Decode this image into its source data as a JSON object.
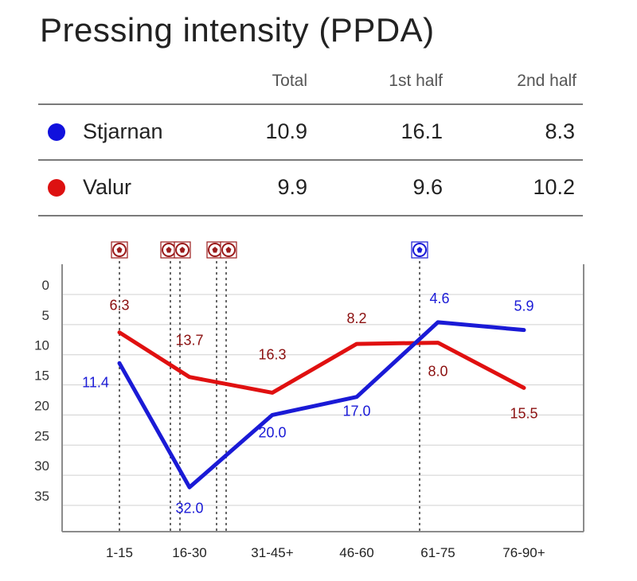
{
  "title": "Pressing intensity (PPDA)",
  "summary": {
    "columns": [
      "Total",
      "1st half",
      "2nd half"
    ],
    "rows": [
      {
        "team": "Stjarnan",
        "color": "#1111dd",
        "values": [
          "10.9",
          "16.1",
          "8.3"
        ]
      },
      {
        "team": "Valur",
        "color": "#dd1111",
        "values": [
          "9.9",
          "9.6",
          "10.2"
        ]
      }
    ]
  },
  "chart_data": {
    "type": "line",
    "categories": [
      "1-15",
      "16-30",
      "31-45+",
      "46-60",
      "61-75",
      "76-90+"
    ],
    "ylim": [
      0,
      35
    ],
    "y_inverted": true,
    "yticks": [
      0,
      5,
      10,
      15,
      20,
      25,
      30,
      35
    ],
    "grid": true,
    "series": [
      {
        "name": "Stjarnan",
        "color": "#1a1ad6",
        "label_color": "#1a1ad6",
        "values": [
          11.4,
          32.0,
          20.0,
          17.0,
          4.6,
          5.9
        ],
        "labels": [
          "11.4",
          "32.0",
          "20.0",
          "17.0",
          "4.6",
          "5.9"
        ]
      },
      {
        "name": "Valur",
        "color": "#e01010",
        "label_color": "#8b1010",
        "values": [
          6.3,
          13.7,
          16.3,
          8.2,
          8.0,
          15.5
        ],
        "labels": [
          "6.3",
          "13.7",
          "16.3",
          "8.2",
          "8.0",
          "15.5"
        ]
      }
    ],
    "goal_markers": [
      {
        "team": "Valur",
        "count": 1,
        "interval": "1-15",
        "color": "#9b1c1c"
      },
      {
        "team": "Valur",
        "count": 2,
        "interval": "16-30",
        "color": "#9b1c1c"
      },
      {
        "team": "Valur",
        "count": 2,
        "interval": "16-30",
        "color": "#9b1c1c"
      },
      {
        "team": "Stjarnan",
        "count": 1,
        "interval": "61-75",
        "color": "#1a1ad6"
      }
    ],
    "icon": "soccer-ball-icon"
  }
}
